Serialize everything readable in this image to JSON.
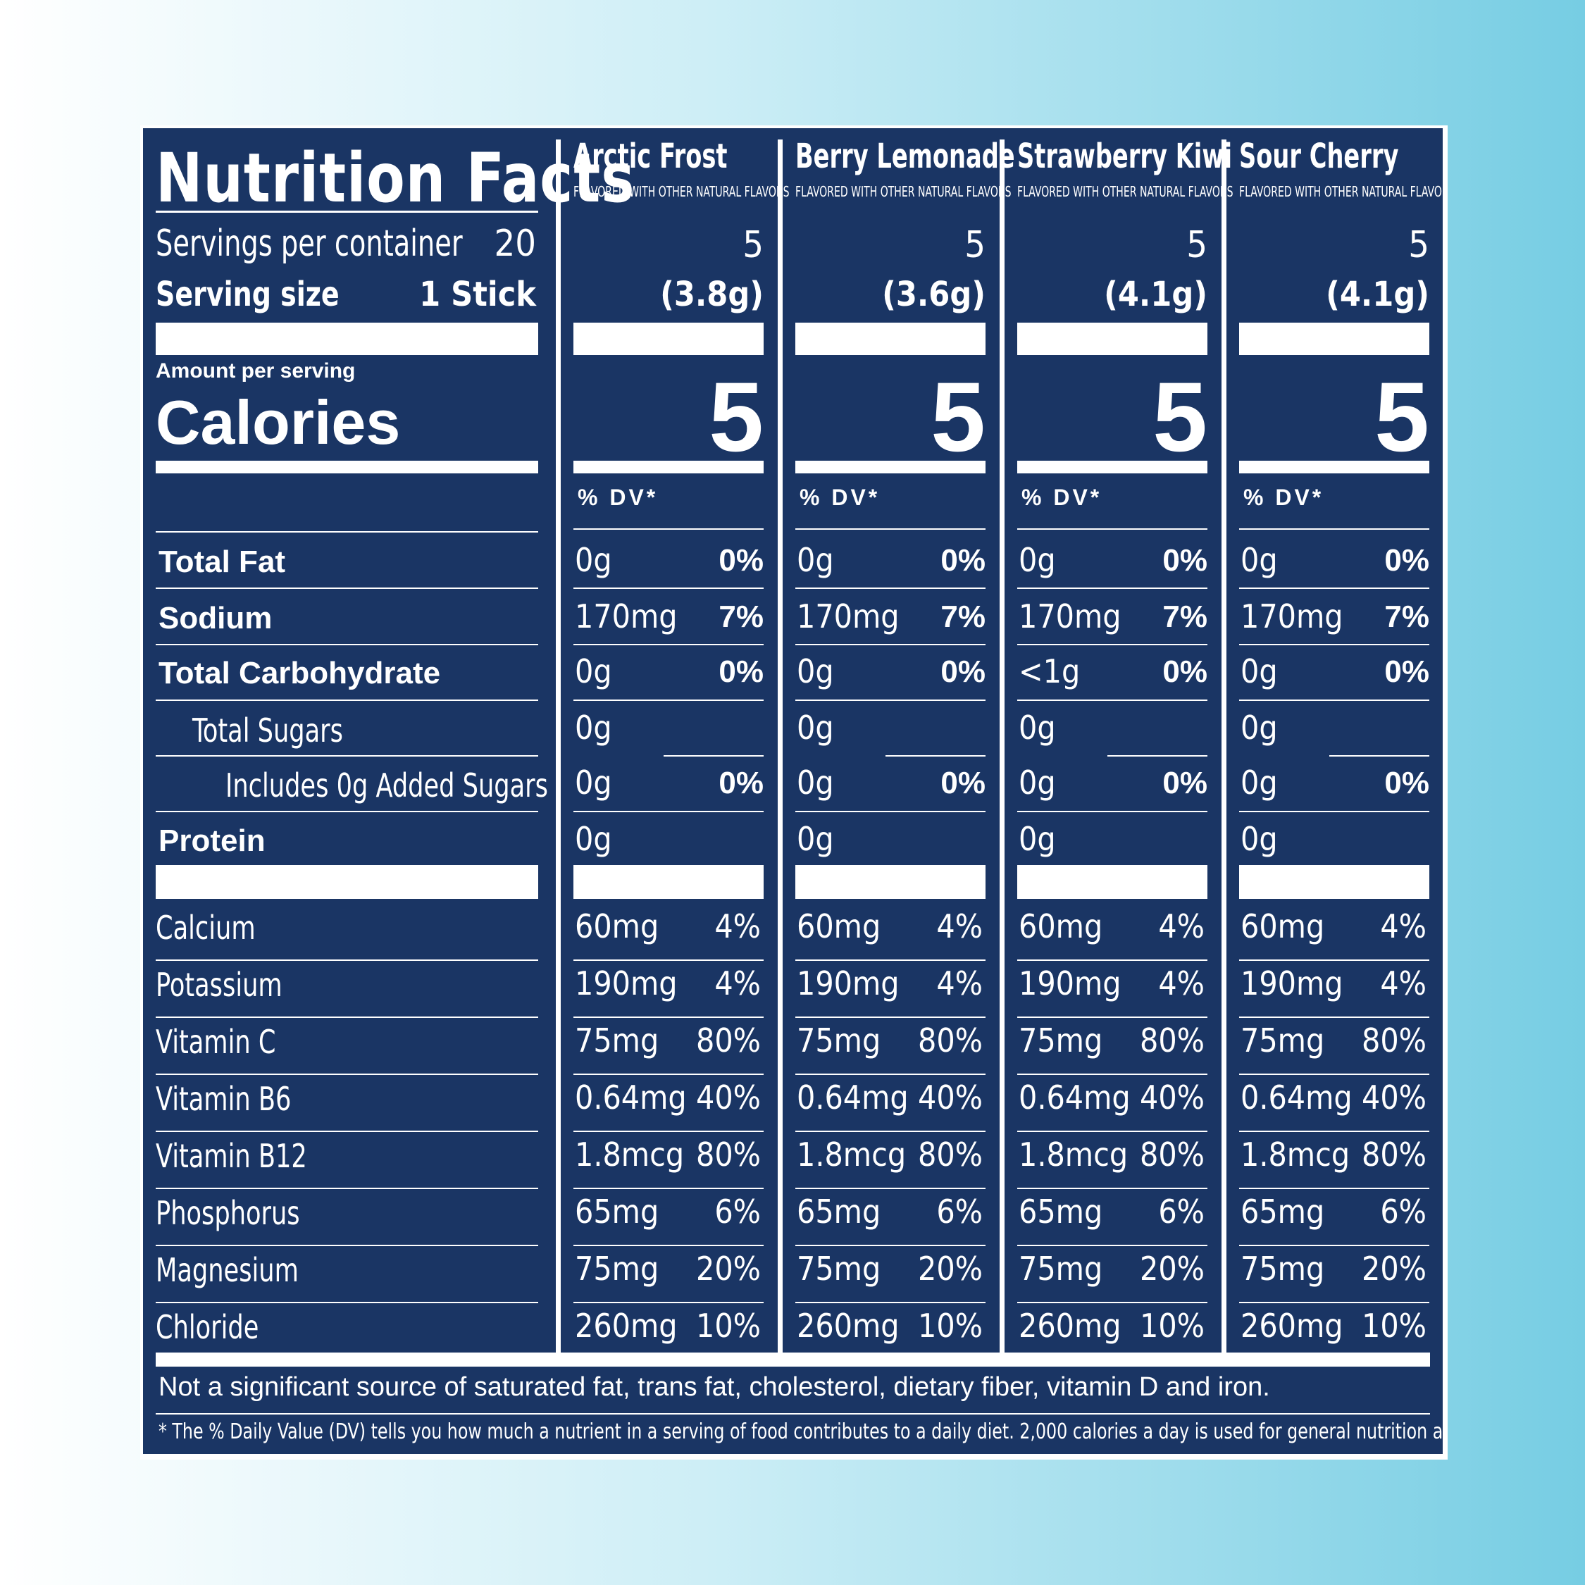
{
  "title": "Nutrition Facts",
  "servings_label": "Servings per container",
  "servings_value": "20",
  "serving_size_label": "Serving size",
  "serving_size_value": "1 Stick",
  "amount_per_serving": "Amount per serving",
  "calories_label": "Calories",
  "columns": [
    {
      "name": "Arctic Frost",
      "subtitle": "FLAVORED WITH OTHER NATURAL FLAVORS",
      "servings": "5",
      "size": "(3.8g)",
      "calories": "5",
      "dv_header": "% DV*"
    },
    {
      "name": "Berry Lemonade",
      "subtitle": "FLAVORED WITH OTHER NATURAL FLAVORS",
      "servings": "5",
      "size": "(3.6g)",
      "calories": "5",
      "dv_header": "% DV*"
    },
    {
      "name": "Strawberry Kiwi",
      "subtitle": "FLAVORED WITH OTHER NATURAL FLAVORS",
      "servings": "5",
      "size": "(4.1g)",
      "calories": "5",
      "dv_header": "% DV*"
    },
    {
      "name": "Sour Cherry",
      "subtitle": "FLAVORED WITH OTHER NATURAL FLAVORS",
      "servings": "5",
      "size": "(4.1g)",
      "calories": "5",
      "dv_header": "% DV*"
    }
  ],
  "main_nutrients": [
    {
      "name": "Total Fat",
      "values": [
        [
          "0g",
          "0%"
        ],
        [
          "0g",
          "0%"
        ],
        [
          "0g",
          "0%"
        ],
        [
          "0g",
          "0%"
        ]
      ]
    },
    {
      "name": "Sodium",
      "values": [
        [
          "170mg",
          "7%"
        ],
        [
          "170mg",
          "7%"
        ],
        [
          "170mg",
          "7%"
        ],
        [
          "170mg",
          "7%"
        ]
      ]
    },
    {
      "name": "Total Carbohydrate",
      "values": [
        [
          "0g",
          "0%"
        ],
        [
          "0g",
          "0%"
        ],
        [
          "<1g",
          "0%"
        ],
        [
          "0g",
          "0%"
        ]
      ]
    },
    {
      "name": "Total Sugars",
      "values": [
        [
          "0g",
          ""
        ],
        [
          "0g",
          ""
        ],
        [
          "0g",
          ""
        ],
        [
          "0g",
          ""
        ]
      ]
    },
    {
      "name": "Includes 0g Added Sugars",
      "values": [
        [
          "0g",
          "0%"
        ],
        [
          "0g",
          "0%"
        ],
        [
          "0g",
          "0%"
        ],
        [
          "0g",
          "0%"
        ]
      ]
    },
    {
      "name": "Protein",
      "values": [
        [
          "0g",
          ""
        ],
        [
          "0g",
          ""
        ],
        [
          "0g",
          ""
        ],
        [
          "0g",
          ""
        ]
      ]
    }
  ],
  "micro_nutrients": [
    {
      "name": "Calcium",
      "values": [
        [
          "60mg",
          "4%"
        ],
        [
          "60mg",
          "4%"
        ],
        [
          "60mg",
          "4%"
        ],
        [
          "60mg",
          "4%"
        ]
      ]
    },
    {
      "name": "Potassium",
      "values": [
        [
          "190mg",
          "4%"
        ],
        [
          "190mg",
          "4%"
        ],
        [
          "190mg",
          "4%"
        ],
        [
          "190mg",
          "4%"
        ]
      ]
    },
    {
      "name": "Vitamin C",
      "values": [
        [
          "75mg",
          "80%"
        ],
        [
          "75mg",
          "80%"
        ],
        [
          "75mg",
          "80%"
        ],
        [
          "75mg",
          "80%"
        ]
      ]
    },
    {
      "name": "Vitamin B6",
      "values": [
        [
          "0.64mg",
          "40%"
        ],
        [
          "0.64mg",
          "40%"
        ],
        [
          "0.64mg",
          "40%"
        ],
        [
          "0.64mg",
          "40%"
        ]
      ]
    },
    {
      "name": "Vitamin B12",
      "values": [
        [
          "1.8mcg",
          "80%"
        ],
        [
          "1.8mcg",
          "80%"
        ],
        [
          "1.8mcg",
          "80%"
        ],
        [
          "1.8mcg",
          "80%"
        ]
      ]
    },
    {
      "name": "Phosphorus",
      "values": [
        [
          "65mg",
          "6%"
        ],
        [
          "65mg",
          "6%"
        ],
        [
          "65mg",
          "6%"
        ],
        [
          "65mg",
          "6%"
        ]
      ]
    },
    {
      "name": "Magnesium",
      "values": [
        [
          "75mg",
          "20%"
        ],
        [
          "75mg",
          "20%"
        ],
        [
          "75mg",
          "20%"
        ],
        [
          "75mg",
          "20%"
        ]
      ]
    },
    {
      "name": "Chloride",
      "values": [
        [
          "260mg",
          "10%"
        ],
        [
          "260mg",
          "10%"
        ],
        [
          "260mg",
          "10%"
        ],
        [
          "260mg",
          "10%"
        ]
      ]
    }
  ],
  "footnote_main": "Not a significant source of saturated fat, trans fat, cholesterol, dietary fiber, vitamin D and iron.",
  "footnote_dv": "* The % Daily Value (DV) tells you how much a nutrient in a serving of food contributes to a daily diet. 2,000 calories a day is used for general nutrition advice."
}
